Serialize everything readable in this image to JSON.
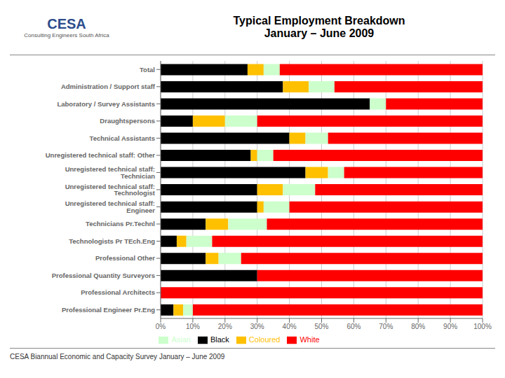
{
  "chart_data": {
    "type": "bar",
    "title": "Typical Employment Breakdown\nJanuary – June 2009",
    "subtitle": "CESA Biannual Economic and Capacity Survey January – June 2009",
    "annotations": [
      "CESA",
      "Consulting Engineers South Africa"
    ],
    "orientation": "horizontal",
    "stacked": true,
    "grid": true,
    "legend": "bottom",
    "categories": [
      "Total",
      "Administration / Support staff",
      "Laboratory / Survey Assistants",
      "Draughtspersons",
      "Technical Assistants",
      "Unregistered technical staff: Other",
      "Unregistered technical staff: Technician",
      "Unregistered technical staff: Technologist",
      "Unregistered technical staff: Engineer",
      "Technicians Pr.Technl",
      "Technologists Pr TEch.Eng",
      "Professional Other",
      "Professional Quantity Surveyors",
      "Professional Architects",
      "Professional Engineer Pr.Eng"
    ],
    "series": [
      {
        "name": "Black",
        "color": "#000000",
        "values": [
          27,
          38,
          65,
          10,
          40,
          28,
          45,
          30,
          30,
          14,
          5,
          14,
          30,
          0,
          4
        ]
      },
      {
        "name": "Coloured",
        "color": "#FFC000",
        "values": [
          5,
          8,
          0,
          10,
          5,
          2,
          7,
          8,
          2,
          7,
          3,
          4,
          0,
          0,
          3
        ]
      },
      {
        "name": "Asian",
        "color": "#CCFFCC",
        "values": [
          5,
          8,
          5,
          10,
          7,
          5,
          5,
          10,
          8,
          12,
          8,
          7,
          0,
          0,
          3
        ]
      },
      {
        "name": "White",
        "color": "#FF0000",
        "values": [
          63,
          46,
          30,
          70,
          48,
          65,
          43,
          52,
          60,
          67,
          84,
          75,
          70,
          100,
          90
        ]
      }
    ],
    "xlim": [
      0,
      100
    ],
    "xticks": [
      {
        "value": 0,
        "label": "0%"
      },
      {
        "value": 10,
        "label": "10%"
      },
      {
        "value": 20,
        "label": "20%"
      },
      {
        "value": 30,
        "label": "30%"
      },
      {
        "value": 40,
        "label": "40%"
      },
      {
        "value": 50,
        "label": "50%"
      },
      {
        "value": 60,
        "label": "60%"
      },
      {
        "value": 70,
        "label": "70%"
      },
      {
        "value": 80,
        "label": "80%"
      },
      {
        "value": 90,
        "label": "90%"
      },
      {
        "value": 100,
        "label": "100%"
      }
    ]
  }
}
